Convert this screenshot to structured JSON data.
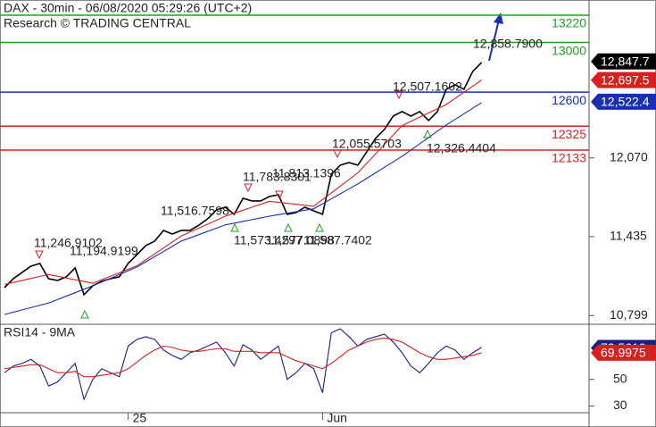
{
  "chart_data": [
    {
      "type": "line",
      "title": "DAX - 30min - 06/08/2020 05:29:26 (UTC+2)",
      "subtitle": "Research © TRADING CENTRAL",
      "categories": [
        null,
        null,
        null,
        null,
        null,
        null,
        null,
        null,
        null,
        null,
        null,
        null,
        null,
        null,
        "25",
        null,
        null,
        null,
        null,
        null,
        null,
        null,
        null,
        null,
        null,
        null,
        null,
        null,
        null,
        null,
        null,
        null,
        null,
        null,
        null,
        null,
        "Jun",
        null,
        null,
        null,
        null,
        null,
        null,
        null,
        null,
        null,
        null,
        null,
        null,
        null,
        null,
        null,
        null,
        null,
        null
      ],
      "series": [
        {
          "color": "#000000",
          "values": [
            11024,
            11096,
            11147,
            11197,
            11219,
            11096,
            11082,
            11111,
            11183,
            10967,
            11039,
            11075,
            11096,
            11111,
            11219,
            11291,
            11363,
            11399,
            11485,
            11456,
            11485,
            11485,
            11528,
            11579,
            11651,
            11672,
            11615,
            11744,
            11723,
            11723,
            11759,
            11773,
            11615,
            11629,
            11672,
            11643,
            11615,
            11939,
            12011,
            12032,
            12011,
            12119,
            12227,
            12299,
            12407,
            12443,
            12407,
            12443,
            12371,
            12443,
            12623,
            12659,
            12623,
            12767,
            12839
          ]
        },
        {
          "color": "#d62020",
          "values": [
            11050,
            11066,
            11082,
            11098,
            11114,
            11130,
            11116,
            11102,
            11088,
            11074,
            11060,
            11088,
            11116,
            11144,
            11172,
            11200,
            11248,
            11296,
            11344,
            11392,
            11440,
            11472,
            11504,
            11536,
            11568,
            11600,
            11624,
            11648,
            11672,
            11696,
            11720,
            11712,
            11704,
            11696,
            11688,
            11680,
            11734,
            11788,
            11842,
            11896,
            11950,
            12026,
            12102,
            12178,
            12254,
            12330,
            12364,
            12398,
            12432,
            12466,
            12500,
            12549,
            12599,
            12648,
            12697
          ]
        },
        {
          "color": "#1a2fb0",
          "values": [
            10808,
            10826,
            10845,
            10863,
            10882,
            10900,
            10928,
            10956,
            10983,
            11011,
            11039,
            11069,
            11099,
            11130,
            11160,
            11190,
            11232,
            11274,
            11315,
            11357,
            11399,
            11425,
            11451,
            11478,
            11504,
            11530,
            11544,
            11558,
            11572,
            11586,
            11600,
            11612,
            11624,
            11636,
            11648,
            11660,
            11700,
            11740,
            11780,
            11820,
            11860,
            11905,
            11949,
            11994,
            12038,
            12083,
            12133,
            12184,
            12234,
            12285,
            12335,
            12380,
            12425,
            12470,
            12515
          ]
        }
      ],
      "ylim": [
        10736,
        13328
      ],
      "yticks": [
        {
          "value": 10799,
          "label": "10,799"
        },
        {
          "value": 11435,
          "label": "11,435"
        },
        {
          "value": 12070,
          "label": "12,070"
        }
      ],
      "levels": [
        {
          "value": 13220,
          "color": "#22a022"
        },
        {
          "value": 13000,
          "color": "#22a022"
        },
        {
          "value": 12600,
          "color": "#1a2fb0"
        },
        {
          "value": 12325,
          "color": "#d62020"
        },
        {
          "value": 12133,
          "color": "#d62020"
        }
      ],
      "price_tags": [
        {
          "value": 12847.7,
          "label": "12,847.7",
          "color": "#000000"
        },
        {
          "value": 12697.5,
          "label": "12,697.5",
          "color": "#d62020"
        },
        {
          "value": 12522.4,
          "label": "12,522.4",
          "color": "#1a2fb0"
        }
      ],
      "annotations": [
        "12,858.7900",
        "12,507.1602",
        "12,326.4404",
        "12,055.5703",
        "11,783.8301",
        "11,813.1396",
        "11,516.7598",
        "11,246.9102",
        "11,194.9199",
        "11,573.4297",
        "11,577.0898",
        "11,587.7402"
      ]
    },
    {
      "type": "line",
      "title": "RSI14 - 9MA",
      "series": [
        {
          "color": "#1a2080",
          "values": [
            55,
            60,
            62,
            65,
            60,
            45,
            48,
            55,
            62,
            35,
            50,
            58,
            55,
            52,
            75,
            80,
            82,
            80,
            72,
            68,
            65,
            70,
            72,
            75,
            78,
            70,
            60,
            76,
            72,
            65,
            70,
            75,
            50,
            55,
            62,
            58,
            40,
            85,
            88,
            82,
            75,
            80,
            82,
            84,
            78,
            70,
            60,
            55,
            62,
            70,
            75,
            72,
            65,
            70,
            74
          ]
        },
        {
          "color": "#d62020",
          "values": [
            58,
            59,
            60,
            61,
            61,
            58,
            55,
            55,
            56,
            52,
            52,
            53,
            54,
            55,
            58,
            63,
            68,
            72,
            75,
            74,
            72,
            71,
            71,
            72,
            73,
            73,
            71,
            71,
            71,
            70,
            70,
            70,
            67,
            64,
            62,
            60,
            58,
            62,
            67,
            72,
            75,
            78,
            80,
            81,
            80,
            78,
            74,
            70,
            67,
            65,
            65,
            66,
            67,
            68,
            70
          ]
        }
      ],
      "ylim": [
        25,
        90
      ],
      "yticks": [
        50,
        30
      ],
      "tags": [
        {
          "value": 73.5619,
          "color": "#1a2080"
        },
        {
          "value": 69.9975,
          "color": "#d62020"
        }
      ]
    }
  ]
}
